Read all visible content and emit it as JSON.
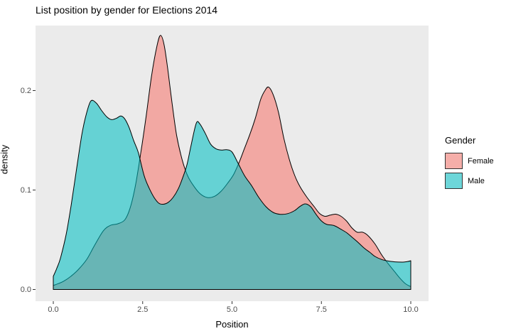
{
  "chart_data": {
    "type": "area",
    "subtype": "density",
    "title": "List position by gender for Elections 2014",
    "xlabel": "Position",
    "ylabel": "density",
    "x_ticks": [
      "0.0",
      "2.5",
      "5.0",
      "7.5",
      "10.0"
    ],
    "x_tick_values": [
      0,
      2.5,
      5,
      7.5,
      10
    ],
    "y_ticks": [
      "0.0",
      "0.1",
      "0.2"
    ],
    "y_tick_values": [
      0,
      0.1,
      0.2
    ],
    "xlim": [
      -0.5,
      10.5
    ],
    "ylim": [
      -0.013,
      0.265
    ],
    "grid": false,
    "legend": {
      "title": "Gender",
      "position": "right",
      "entries": [
        {
          "label": "Female",
          "fill": "#F8766D",
          "key_fill": "#F5AEA9"
        },
        {
          "label": "Male",
          "fill": "#00BFC4",
          "key_fill": "#6DD6D9"
        }
      ]
    },
    "series": [
      {
        "name": "Female",
        "fill": "#F8766D",
        "fill_opacity": 0.57,
        "stroke": "#000000",
        "points": [
          [
            0,
            0.004
          ],
          [
            0.15,
            0.006
          ],
          [
            0.3,
            0.0085
          ],
          [
            0.5,
            0.0135
          ],
          [
            0.7,
            0.02
          ],
          [
            0.93,
            0.03
          ],
          [
            1.15,
            0.044
          ],
          [
            1.4,
            0.059
          ],
          [
            1.6,
            0.0645
          ],
          [
            1.8,
            0.066
          ],
          [
            2.0,
            0.07
          ],
          [
            2.15,
            0.082
          ],
          [
            2.3,
            0.105
          ],
          [
            2.45,
            0.138
          ],
          [
            2.6,
            0.175
          ],
          [
            2.75,
            0.215
          ],
          [
            2.9,
            0.245
          ],
          [
            3.0,
            0.2555
          ],
          [
            3.1,
            0.246
          ],
          [
            3.2,
            0.222
          ],
          [
            3.32,
            0.188
          ],
          [
            3.45,
            0.155
          ],
          [
            3.6,
            0.131
          ],
          [
            3.75,
            0.115
          ],
          [
            3.9,
            0.1055
          ],
          [
            4.1,
            0.0965
          ],
          [
            4.3,
            0.0925
          ],
          [
            4.5,
            0.0935
          ],
          [
            4.7,
            0.099
          ],
          [
            4.9,
            0.108
          ],
          [
            5.05,
            0.116
          ],
          [
            5.2,
            0.128
          ],
          [
            5.35,
            0.142
          ],
          [
            5.5,
            0.156
          ],
          [
            5.65,
            0.172
          ],
          [
            5.8,
            0.191
          ],
          [
            5.92,
            0.2
          ],
          [
            6.02,
            0.2035
          ],
          [
            6.15,
            0.196
          ],
          [
            6.3,
            0.178
          ],
          [
            6.45,
            0.152
          ],
          [
            6.6,
            0.131
          ],
          [
            6.75,
            0.115
          ],
          [
            6.9,
            0.1035
          ],
          [
            7.1,
            0.0925
          ],
          [
            7.3,
            0.0832
          ],
          [
            7.45,
            0.0764
          ],
          [
            7.6,
            0.0736
          ],
          [
            7.75,
            0.0748
          ],
          [
            7.9,
            0.0757
          ],
          [
            8.05,
            0.0736
          ],
          [
            8.2,
            0.0689
          ],
          [
            8.35,
            0.0621
          ],
          [
            8.5,
            0.0576
          ],
          [
            8.65,
            0.0576
          ],
          [
            8.8,
            0.0543
          ],
          [
            9.0,
            0.0457
          ],
          [
            9.2,
            0.034
          ],
          [
            9.4,
            0.0245
          ],
          [
            9.55,
            0.0178
          ],
          [
            9.7,
            0.0112
          ],
          [
            9.85,
            0.0058
          ],
          [
            10,
            0.0028
          ]
        ]
      },
      {
        "name": "Male",
        "fill": "#00BFC4",
        "fill_opacity": 0.57,
        "stroke": "#000000",
        "points": [
          [
            0,
            0.0132
          ],
          [
            0.1,
            0.0215
          ],
          [
            0.2,
            0.0315
          ],
          [
            0.36,
            0.0554
          ],
          [
            0.5,
            0.085
          ],
          [
            0.65,
            0.121
          ],
          [
            0.8,
            0.156
          ],
          [
            0.92,
            0.176
          ],
          [
            1.05,
            0.1895
          ],
          [
            1.2,
            0.1875
          ],
          [
            1.35,
            0.18
          ],
          [
            1.5,
            0.1735
          ],
          [
            1.63,
            0.1708
          ],
          [
            1.77,
            0.1722
          ],
          [
            1.89,
            0.1745
          ],
          [
            2.0,
            0.1715
          ],
          [
            2.12,
            0.163
          ],
          [
            2.25,
            0.1495
          ],
          [
            2.38,
            0.1375
          ],
          [
            2.54,
            0.1145
          ],
          [
            2.68,
            0.102
          ],
          [
            2.82,
            0.0925
          ],
          [
            2.95,
            0.0868
          ],
          [
            3.08,
            0.0857
          ],
          [
            3.22,
            0.0877
          ],
          [
            3.35,
            0.0925
          ],
          [
            3.5,
            0.1015
          ],
          [
            3.62,
            0.1125
          ],
          [
            3.74,
            0.1255
          ],
          [
            3.86,
            0.146
          ],
          [
            4.0,
            0.1672
          ],
          [
            4.1,
            0.1665
          ],
          [
            4.25,
            0.157
          ],
          [
            4.4,
            0.1462
          ],
          [
            4.55,
            0.1415
          ],
          [
            4.7,
            0.1402
          ],
          [
            4.85,
            0.1405
          ],
          [
            5.0,
            0.1382
          ],
          [
            5.17,
            0.1268
          ],
          [
            5.35,
            0.1145
          ],
          [
            5.55,
            0.1042
          ],
          [
            5.75,
            0.0925
          ],
          [
            5.95,
            0.0832
          ],
          [
            6.15,
            0.0775
          ],
          [
            6.35,
            0.0756
          ],
          [
            6.55,
            0.0762
          ],
          [
            6.75,
            0.0793
          ],
          [
            6.9,
            0.0835
          ],
          [
            7.05,
            0.0861
          ],
          [
            7.2,
            0.0832
          ],
          [
            7.35,
            0.0756
          ],
          [
            7.5,
            0.0689
          ],
          [
            7.65,
            0.0654
          ],
          [
            7.85,
            0.0643
          ],
          [
            8.05,
            0.0605
          ],
          [
            8.2,
            0.0572
          ],
          [
            8.35,
            0.0528
          ],
          [
            8.5,
            0.0482
          ],
          [
            8.7,
            0.0415
          ],
          [
            8.85,
            0.0375
          ],
          [
            9.0,
            0.0332
          ],
          [
            9.18,
            0.0302
          ],
          [
            9.35,
            0.0287
          ],
          [
            9.55,
            0.0278
          ],
          [
            9.75,
            0.0275
          ],
          [
            9.9,
            0.028
          ],
          [
            10,
            0.0289
          ]
        ]
      }
    ]
  },
  "colors": {
    "panel_background": "#EBEBEB",
    "outer_background": "#FFFFFF",
    "curve_outline": "#000000",
    "axis_text": "#4D4D4D",
    "tick_mark": "#333333",
    "female_fill_appearance": "#F2ABA6",
    "male_fill_appearance": "#65D2D5",
    "overlap_appearance": "#6FB5B5"
  }
}
